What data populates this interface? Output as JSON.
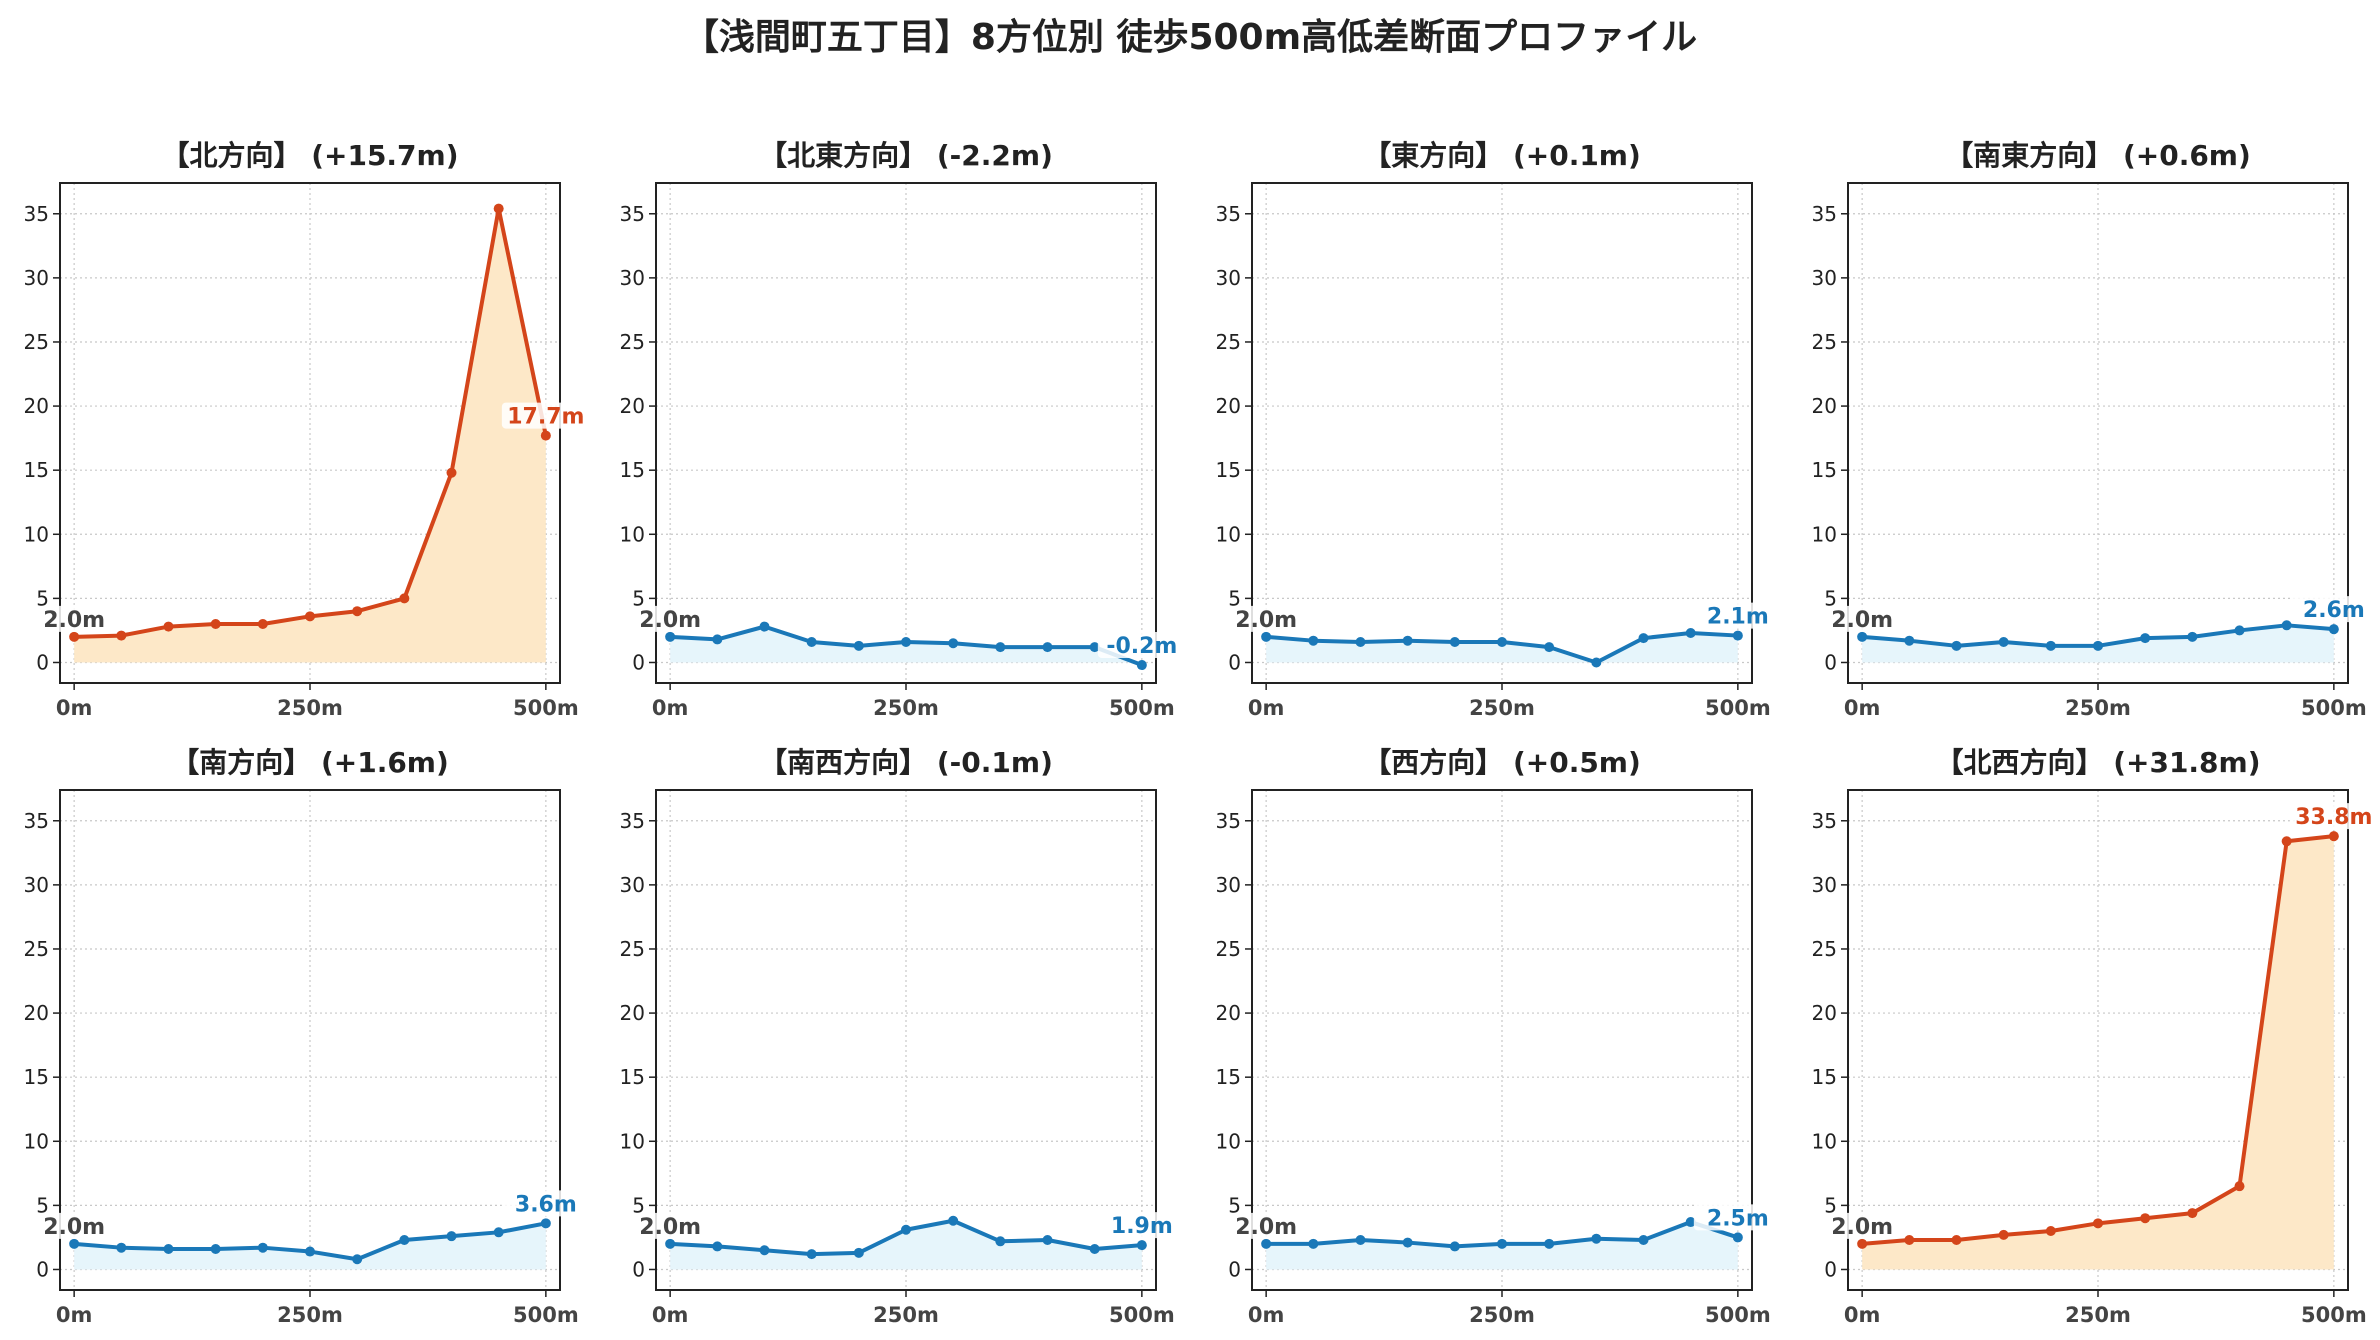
{
  "title": "【浅間町五丁目】8方位別 徒歩500m高低差断面プロファイル",
  "colors": {
    "up_line": "#d4451a",
    "up_fill": "#fde8c8",
    "flat_line": "#1a78b8",
    "flat_fill": "#e6f5fb",
    "start_label": "#444444",
    "grid": "#c8c8c8"
  },
  "chart_data": [
    {
      "type": "area",
      "title": "【北方向】 (+15.7m)",
      "style": "up",
      "x": [
        0,
        50,
        100,
        150,
        200,
        250,
        300,
        350,
        400,
        450,
        500
      ],
      "y": [
        2.0,
        2.1,
        2.8,
        3.0,
        3.0,
        3.6,
        4.0,
        5.0,
        14.8,
        35.4,
        17.7
      ],
      "start_label": "2.0m",
      "end_label": "17.7m",
      "xticks": [
        "0m",
        "250m",
        "500m"
      ],
      "yticks": [
        0,
        5,
        10,
        15,
        20,
        25,
        30,
        35
      ],
      "xlim": [
        -15,
        515
      ],
      "ylim": [
        -1.6,
        37.4
      ],
      "grid": true
    },
    {
      "type": "area",
      "title": "【北東方向】 (-2.2m)",
      "style": "flat",
      "x": [
        0,
        50,
        100,
        150,
        200,
        250,
        300,
        350,
        400,
        450,
        500
      ],
      "y": [
        2.0,
        1.8,
        2.8,
        1.6,
        1.3,
        1.6,
        1.5,
        1.2,
        1.2,
        1.2,
        -0.2
      ],
      "start_label": "2.0m",
      "end_label": "-0.2m",
      "xticks": [
        "0m",
        "250m",
        "500m"
      ],
      "yticks": [
        0,
        5,
        10,
        15,
        20,
        25,
        30,
        35
      ],
      "xlim": [
        -15,
        515
      ],
      "ylim": [
        -1.6,
        37.4
      ],
      "grid": true
    },
    {
      "type": "area",
      "title": "【東方向】 (+0.1m)",
      "style": "flat",
      "x": [
        0,
        50,
        100,
        150,
        200,
        250,
        300,
        350,
        400,
        450,
        500
      ],
      "y": [
        2.0,
        1.7,
        1.6,
        1.7,
        1.6,
        1.6,
        1.2,
        0.0,
        1.9,
        2.3,
        2.1
      ],
      "start_label": "2.0m",
      "end_label": "2.1m",
      "xticks": [
        "0m",
        "250m",
        "500m"
      ],
      "yticks": [
        0,
        5,
        10,
        15,
        20,
        25,
        30,
        35
      ],
      "xlim": [
        -15,
        515
      ],
      "ylim": [
        -1.6,
        37.4
      ],
      "grid": true
    },
    {
      "type": "area",
      "title": "【南東方向】 (+0.6m)",
      "style": "flat",
      "x": [
        0,
        50,
        100,
        150,
        200,
        250,
        300,
        350,
        400,
        450,
        500
      ],
      "y": [
        2.0,
        1.7,
        1.3,
        1.6,
        1.3,
        1.3,
        1.9,
        2.0,
        2.5,
        2.9,
        2.6
      ],
      "start_label": "2.0m",
      "end_label": "2.6m",
      "xticks": [
        "0m",
        "250m",
        "500m"
      ],
      "yticks": [
        0,
        5,
        10,
        15,
        20,
        25,
        30,
        35
      ],
      "xlim": [
        -15,
        515
      ],
      "ylim": [
        -1.6,
        37.4
      ],
      "grid": true
    },
    {
      "type": "area",
      "title": "【南方向】 (+1.6m)",
      "style": "flat",
      "x": [
        0,
        50,
        100,
        150,
        200,
        250,
        300,
        350,
        400,
        450,
        500
      ],
      "y": [
        2.0,
        1.7,
        1.6,
        1.6,
        1.7,
        1.4,
        0.8,
        2.3,
        2.6,
        2.9,
        3.6
      ],
      "start_label": "2.0m",
      "end_label": "3.6m",
      "xticks": [
        "0m",
        "250m",
        "500m"
      ],
      "yticks": [
        0,
        5,
        10,
        15,
        20,
        25,
        30,
        35
      ],
      "xlim": [
        -15,
        515
      ],
      "ylim": [
        -1.6,
        37.4
      ],
      "grid": true
    },
    {
      "type": "area",
      "title": "【南西方向】 (-0.1m)",
      "style": "flat",
      "x": [
        0,
        50,
        100,
        150,
        200,
        250,
        300,
        350,
        400,
        450,
        500
      ],
      "y": [
        2.0,
        1.8,
        1.5,
        1.2,
        1.3,
        3.1,
        3.8,
        2.2,
        2.3,
        1.6,
        1.9
      ],
      "start_label": "2.0m",
      "end_label": "1.9m",
      "xticks": [
        "0m",
        "250m",
        "500m"
      ],
      "yticks": [
        0,
        5,
        10,
        15,
        20,
        25,
        30,
        35
      ],
      "xlim": [
        -15,
        515
      ],
      "ylim": [
        -1.6,
        37.4
      ],
      "grid": true
    },
    {
      "type": "area",
      "title": "【西方向】 (+0.5m)",
      "style": "flat",
      "x": [
        0,
        50,
        100,
        150,
        200,
        250,
        300,
        350,
        400,
        450,
        500
      ],
      "y": [
        2.0,
        2.0,
        2.3,
        2.1,
        1.8,
        2.0,
        2.0,
        2.4,
        2.3,
        3.7,
        2.5
      ],
      "start_label": "2.0m",
      "end_label": "2.5m",
      "xticks": [
        "0m",
        "250m",
        "500m"
      ],
      "yticks": [
        0,
        5,
        10,
        15,
        20,
        25,
        30,
        35
      ],
      "xlim": [
        -15,
        515
      ],
      "ylim": [
        -1.6,
        37.4
      ],
      "grid": true
    },
    {
      "type": "area",
      "title": "【北西方向】 (+31.8m)",
      "style": "up",
      "x": [
        0,
        50,
        100,
        150,
        200,
        250,
        300,
        350,
        400,
        450,
        500
      ],
      "y": [
        2.0,
        2.3,
        2.3,
        2.7,
        3.0,
        3.6,
        4.0,
        4.4,
        6.5,
        33.4,
        33.8
      ],
      "start_label": "2.0m",
      "end_label": "33.8m",
      "xticks": [
        "0m",
        "250m",
        "500m"
      ],
      "yticks": [
        0,
        5,
        10,
        15,
        20,
        25,
        30,
        35
      ],
      "xlim": [
        -15,
        515
      ],
      "ylim": [
        -1.6,
        37.4
      ],
      "grid": true
    }
  ]
}
